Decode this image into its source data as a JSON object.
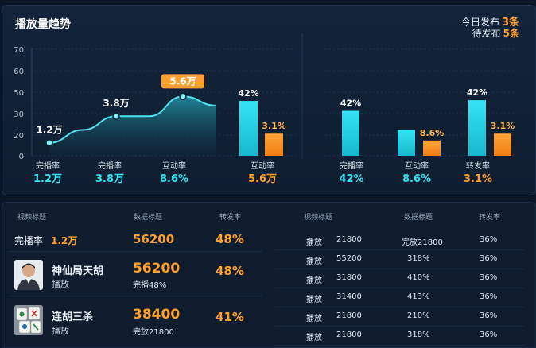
{
  "header": {
    "title": "播放量趋势",
    "today_label": "今日发布",
    "today_value": "3条",
    "pending_label": "待发布",
    "pending_value": "5条"
  },
  "colors": {
    "accent_cyan": "#2ad8e8",
    "accent_orange": "#ff9f2e",
    "background": "#0b1626"
  },
  "chart_data": [
    {
      "type": "line",
      "y_ticks": [
        "70",
        "60",
        "50",
        "30",
        "20",
        "10",
        "0"
      ],
      "ylim": [
        0,
        70
      ],
      "annotations": [
        {
          "text": "1.2万",
          "x": 0,
          "y": 8.5
        },
        {
          "text": "3.8万",
          "x": 1,
          "y": 26
        },
        {
          "text": "5.6万",
          "x": 2,
          "y": 39,
          "highlight": true
        }
      ],
      "series": [
        {
          "x": [
            0,
            0.5,
            1,
            1.5,
            2,
            2.5
          ],
          "y": [
            8.5,
            17,
            26,
            26,
            39,
            33
          ]
        }
      ],
      "categories": [
        {
          "label": "完播率",
          "value": "1.2万"
        },
        {
          "label": "完播率",
          "value": "3.8万"
        },
        {
          "label": "互动率",
          "value": "8.6%"
        },
        {
          "label": "互动率",
          "value": "5.6万"
        }
      ]
    },
    {
      "type": "bar",
      "bars": [
        {
          "color": "cyan",
          "value": 36,
          "label": "42%"
        },
        {
          "color": "orange",
          "value": 14.5,
          "label": "3.1%"
        }
      ]
    },
    {
      "type": "bar",
      "categories": [
        {
          "label": "完播率",
          "value": "42%"
        },
        {
          "label": "互动率",
          "value": "8.6%"
        },
        {
          "label": "转发率",
          "value": "3.1%"
        }
      ],
      "series": [
        {
          "color": "cyan",
          "values": [
            29.5,
            17,
            36.5
          ],
          "labels": [
            "42%",
            "",
            "42%"
          ]
        },
        {
          "color": "orange",
          "values": [
            0,
            10,
            14.5
          ],
          "labels": [
            "",
            "8.6%",
            "3.1%"
          ]
        }
      ],
      "ylim": [
        0,
        70
      ]
    }
  ],
  "left_table": {
    "headers": [
      "视频标题",
      "数据标题",
      "转发率"
    ],
    "summary": {
      "label": "完播率",
      "value": "1.2万",
      "number": "56200",
      "rate": "48%"
    },
    "rows": [
      {
        "title": "神仙局天胡",
        "sub": "播放",
        "number": "56200",
        "detail": "完播48%",
        "rate": "48%"
      },
      {
        "title": "连胡三杀",
        "sub": "播放",
        "number": "38400",
        "detail": "完放21800",
        "rate": "41%"
      }
    ]
  },
  "right_table": {
    "headers": [
      "视频标题",
      "数据标题",
      "转发率"
    ],
    "rows": [
      {
        "c1": "播放",
        "c2": "21800",
        "c3": "完放21800",
        "c4": "36%"
      },
      {
        "c1": "播放",
        "c2": "55200",
        "c3": "318%",
        "c4": "36%"
      },
      {
        "c1": "播放",
        "c2": "31800",
        "c3": "410%",
        "c4": "36%"
      },
      {
        "c1": "播放",
        "c2": "31400",
        "c3": "413%",
        "c4": "36%"
      },
      {
        "c1": "播放",
        "c2": "21800",
        "c3": "210%",
        "c4": "36%"
      },
      {
        "c1": "播放",
        "c2": "21800",
        "c3": "318%",
        "c4": "36%"
      }
    ]
  }
}
